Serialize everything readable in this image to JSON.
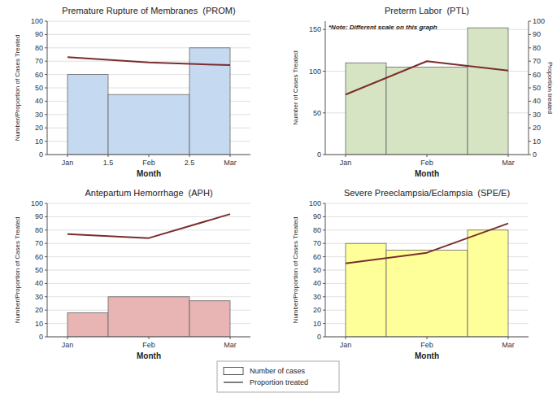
{
  "chart_data": [
    {
      "type": "bar",
      "title": "Premature Rupture of Membranes  (PROM)",
      "x_label": "Month",
      "y_label": "Number/Proportion of Cases Treated",
      "xlim": [
        0.75,
        3.25
      ],
      "xticks": [
        {
          "value": 1,
          "label": "Jan"
        },
        1.5,
        {
          "value": 2,
          "label": "Feb"
        },
        2.5,
        {
          "value": 3,
          "label": "Mar"
        }
      ],
      "ylim": [
        0,
        100
      ],
      "yticks": [
        0,
        10,
        20,
        30,
        40,
        50,
        60,
        70,
        80,
        90,
        100
      ],
      "grid": true,
      "legend": "bottom",
      "series": [
        {
          "name": "Number of cases",
          "type": "bar",
          "color": "#c5d9f1",
          "bins": [
            1,
            1.5,
            2.5,
            3
          ],
          "values": [
            60,
            45,
            80
          ]
        },
        {
          "name": "Proportion treated",
          "type": "line",
          "color": "#7b2d2d",
          "x": [
            1,
            2,
            3
          ],
          "values": [
            73,
            69,
            67
          ]
        }
      ]
    },
    {
      "type": "bar",
      "title": "Preterm Labor  (PTL)",
      "x_label": "Month",
      "y_label": "Number of Cases Treated",
      "y2_label": "Proportion treated",
      "annotation": "*Note: Different scale on this graph",
      "xlim": [
        0.75,
        3.25
      ],
      "xticks": [
        {
          "value": 1,
          "label": "Jan"
        },
        {
          "value": 2,
          "label": "Feb"
        },
        {
          "value": 3,
          "label": "Mar"
        }
      ],
      "ylim": [
        0,
        160
      ],
      "yticks": [
        0,
        50,
        100,
        150
      ],
      "y2lim": [
        0,
        100
      ],
      "y2ticks": [
        0,
        10,
        20,
        30,
        40,
        50,
        60,
        70,
        80,
        90,
        100
      ],
      "grid": true,
      "series": [
        {
          "type": "bar",
          "color": "#d6e4c4",
          "bins": [
            1,
            1.5,
            2.5,
            3
          ],
          "values": [
            110,
            105,
            152
          ]
        },
        {
          "type": "line",
          "color": "#7b2d2d",
          "axis": "y2",
          "x": [
            1,
            2,
            3
          ],
          "values": [
            45,
            70,
            63
          ]
        }
      ]
    },
    {
      "type": "bar",
      "title": "Antepartum Hemorrhage  (APH)",
      "x_label": "Month",
      "y_label": "Number/Proportion of Cases Treated",
      "xlim": [
        0.75,
        3.25
      ],
      "xticks": [
        {
          "value": 1,
          "label": "Jan"
        },
        {
          "value": 2,
          "label": "Feb"
        },
        {
          "value": 3,
          "label": "Mar"
        }
      ],
      "ylim": [
        0,
        100
      ],
      "yticks": [
        0,
        10,
        20,
        30,
        40,
        50,
        60,
        70,
        80,
        90,
        100
      ],
      "grid": true,
      "series": [
        {
          "type": "bar",
          "color": "#e8b4b4",
          "bins": [
            1,
            1.5,
            2.5,
            3
          ],
          "values": [
            18,
            30,
            27
          ]
        },
        {
          "type": "line",
          "color": "#7b2d2d",
          "x": [
            1,
            2,
            3
          ],
          "values": [
            77,
            74,
            92
          ]
        }
      ]
    },
    {
      "type": "bar",
      "title": "Severe Preeclampsia/Eclampsia  (SPE/E)",
      "x_label": "Month",
      "y_label": "Number/Proportion of Cases Treated",
      "xlim": [
        0.75,
        3.25
      ],
      "xticks": [
        {
          "value": 1,
          "label": "Jan"
        },
        {
          "value": 2,
          "label": "Feb"
        },
        {
          "value": 3,
          "label": "Mar"
        }
      ],
      "ylim": [
        0,
        100
      ],
      "yticks": [
        0,
        10,
        20,
        30,
        40,
        50,
        60,
        70,
        80,
        90,
        100
      ],
      "grid": true,
      "series": [
        {
          "type": "bar",
          "color": "#ffff99",
          "bins": [
            1,
            1.5,
            2.5,
            3
          ],
          "values": [
            70,
            65,
            80
          ]
        },
        {
          "type": "line",
          "color": "#7b2d2d",
          "x": [
            1,
            2,
            3
          ],
          "values": [
            55,
            63,
            85
          ]
        }
      ]
    }
  ]
}
